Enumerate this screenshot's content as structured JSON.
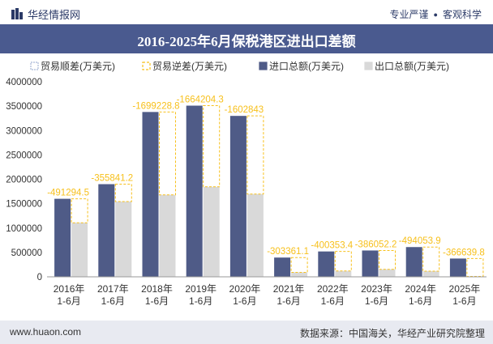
{
  "header": {
    "brand": "华经情报网",
    "tag1": "专业严谨",
    "tag2": "客观科学"
  },
  "title": "2016-2025年6月保税港区进出口差额",
  "footer": {
    "site": "www.huaon.com",
    "source": "数据来源：中国海关，华经产业研究院整理"
  },
  "colors": {
    "accent": "#4a5a8f",
    "import": "#4f5b87",
    "export": "#d9d9d9",
    "deficit": "#f7c01c",
    "surplus": "#a7b6d6"
  },
  "chart_data": {
    "type": "bar",
    "categories": [
      "2016年\n1-6月",
      "2017年\n1-6月",
      "2018年\n1-6月",
      "2019年\n1-6月",
      "2020年\n1-6月",
      "2021年\n1-6月",
      "2022年\n1-6月",
      "2023年\n1-6月",
      "2024年\n1-6月",
      "2025年\n1-6月"
    ],
    "legend": [
      "贸易顺差(万美元)",
      "贸易逆差(万美元)",
      "进口总额(万美元)",
      "出口总额(万美元)"
    ],
    "legend_position": "top",
    "ylim": [
      0,
      4000000
    ],
    "yticks": [
      0,
      500000,
      1000000,
      1500000,
      2000000,
      2500000,
      3000000,
      3500000,
      4000000
    ],
    "grid": false,
    "series": [
      {
        "name": "贸易顺差(万美元)",
        "values": [
          0,
          0,
          0,
          0,
          0,
          0,
          0,
          0,
          0,
          0
        ]
      },
      {
        "name": "贸易逆差(万美元)",
        "values": [
          -491294.5,
          -355841.2,
          -1699228.8,
          -1664204.3,
          -1602843,
          -303361.1,
          -400353.4,
          -386052.2,
          -494053.9,
          -366639.8
        ]
      },
      {
        "name": "进口总额(万美元)",
        "values": [
          1600000,
          1900000,
          3380000,
          3510000,
          3300000,
          395000,
          520000,
          540000,
          610000,
          375000
        ]
      },
      {
        "name": "出口总额(万美元)",
        "values": [
          1108705.5,
          1544158.8,
          1680771.2,
          1845795.7,
          1697157,
          91638.9,
          119646.6,
          153947.8,
          115946.1,
          8360.2
        ]
      }
    ],
    "data_labels": [
      "-491294.5",
      "-355841.2",
      "-1699228.8",
      "-1664204.3",
      "-1602843",
      "-303361.1",
      "-400353.4",
      "-386052.2",
      "-494053.9",
      "-366639.8"
    ]
  }
}
